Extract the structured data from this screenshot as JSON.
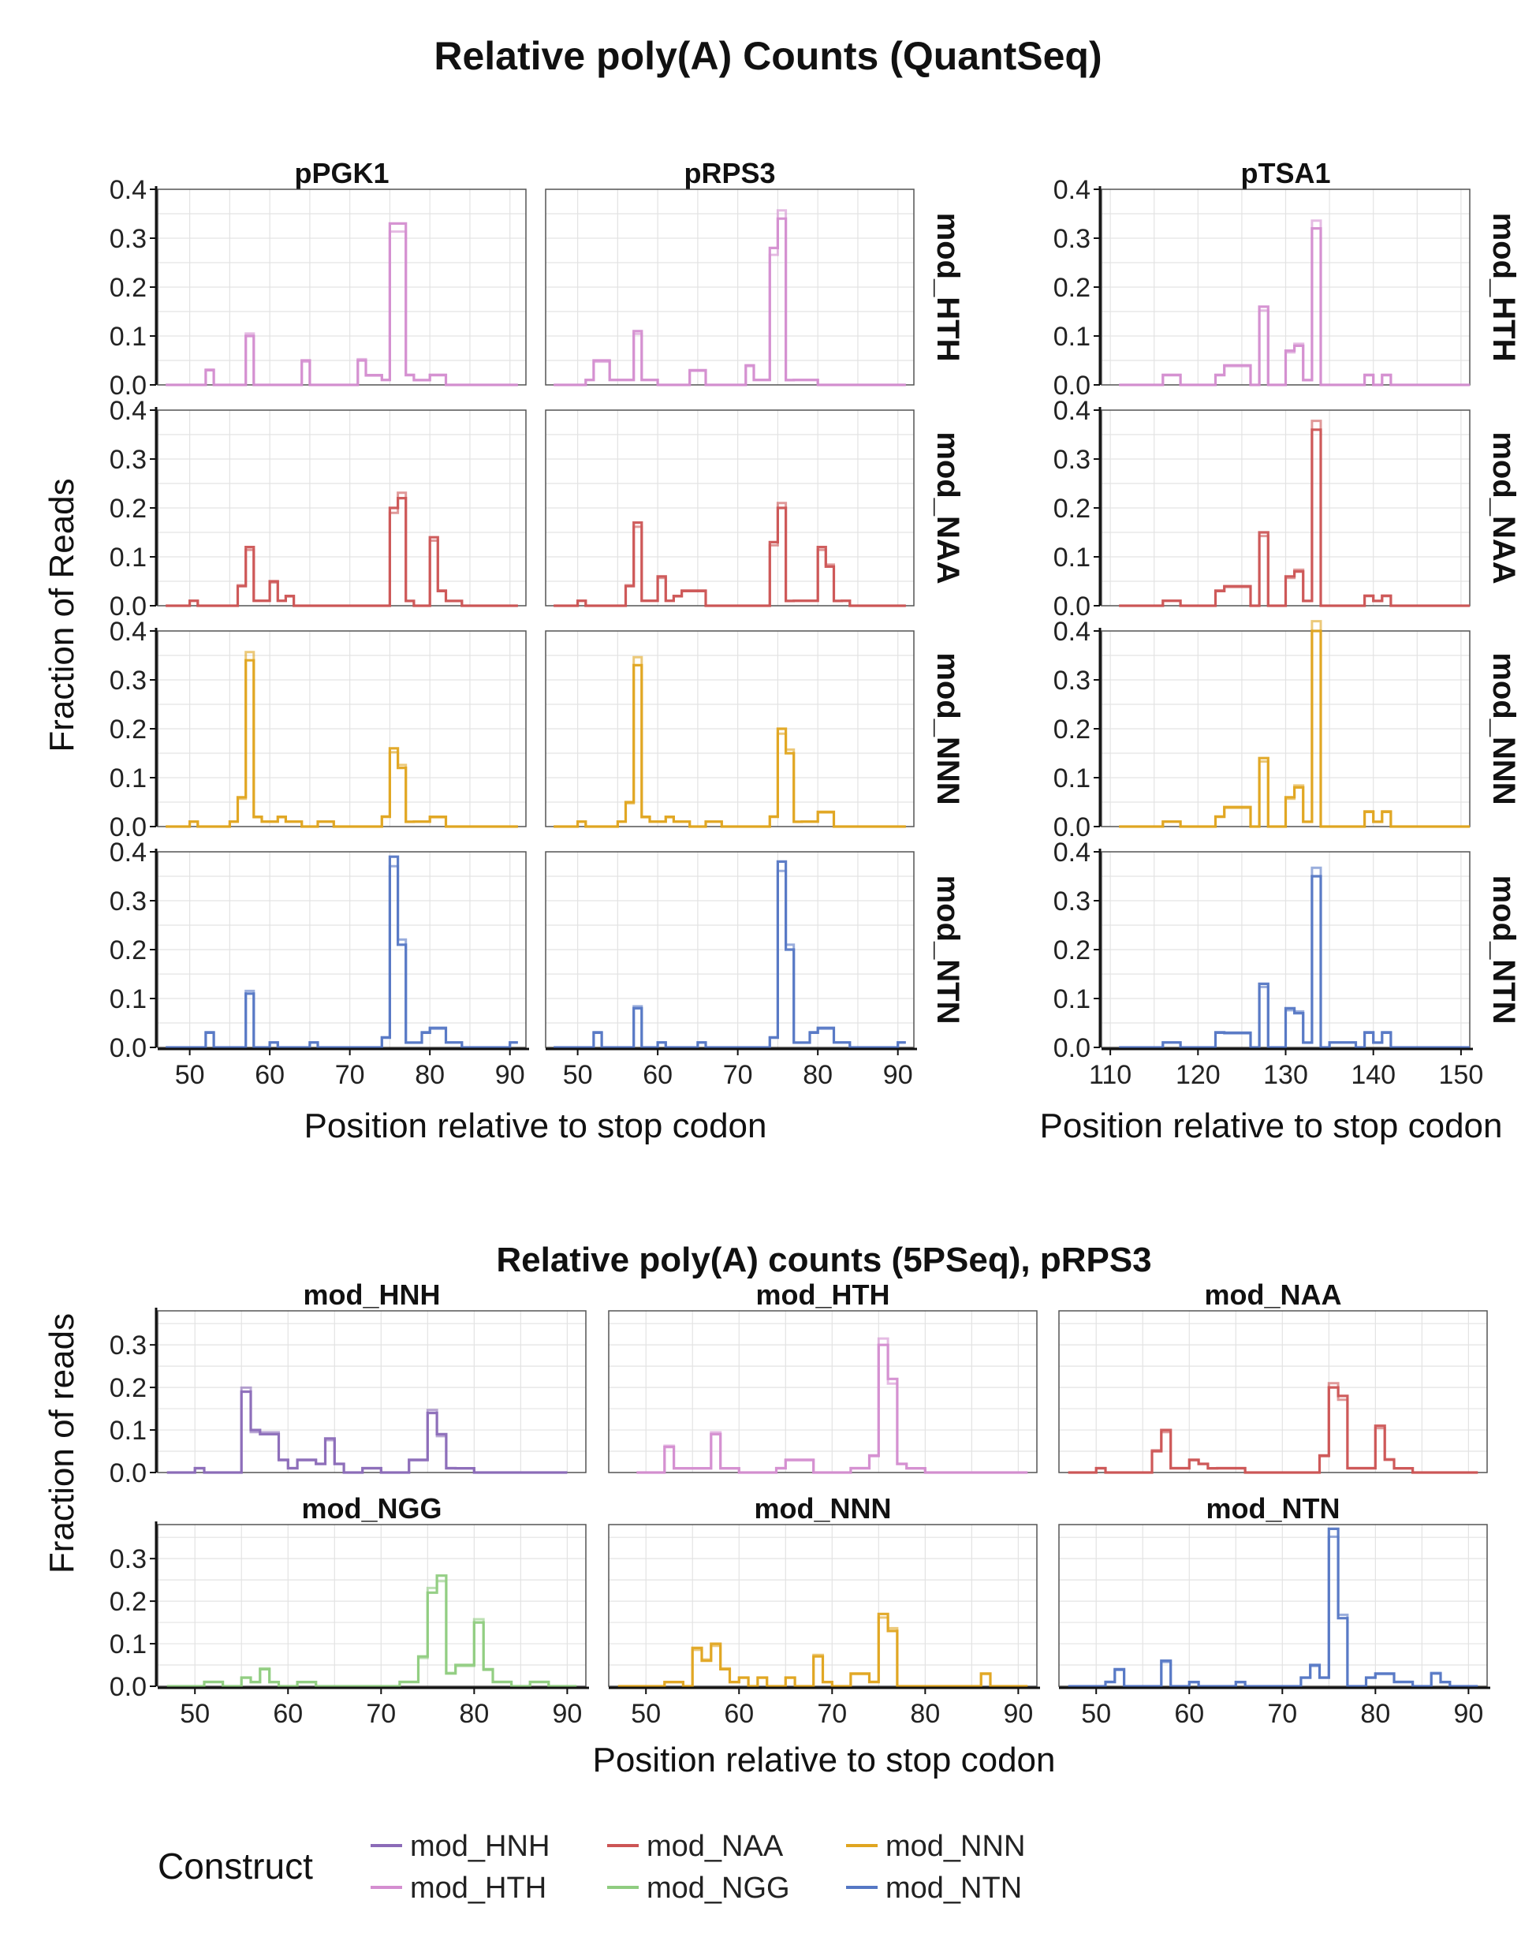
{
  "title": "Relative poly(A) Counts (QuantSeq)",
  "colors": {
    "mod_HNH": "#8b6bb8",
    "mod_HTH": "#d48ed0",
    "mod_NAA": "#cc5555",
    "mod_NGG": "#8fcc80",
    "mod_NNN": "#e0a520",
    "mod_NTN": "#5577c4"
  },
  "chart_data": [
    {
      "type": "line",
      "title": "Relative poly(A) Counts (QuantSeq)",
      "xlabel": "Position relative to stop codon",
      "ylabel": "Fraction of Reads",
      "ylim": [
        0,
        0.4
      ],
      "yticks": [
        "0.0",
        "0.1",
        "0.2",
        "0.3",
        "0.4"
      ],
      "columns": [
        "pPGK1",
        "pRPS3",
        "pTSA1"
      ],
      "rows": [
        "mod_HTH",
        "mod_NAA",
        "mod_NNN",
        "mod_NTN"
      ],
      "xlim": {
        "pPGK1": [
          46,
          92
        ],
        "pRPS3": [
          46,
          92
        ],
        "pTSA1": [
          109,
          151
        ]
      },
      "xticks": {
        "pPGK1": [
          50,
          60,
          70,
          80,
          90
        ],
        "pRPS3": [
          50,
          60,
          70,
          80,
          90
        ],
        "pTSA1": [
          110,
          120,
          130,
          140,
          150
        ]
      },
      "grid": true,
      "panels": [
        {
          "column": "pPGK1",
          "row": "mod_HTH",
          "x": [
            47,
            52,
            53,
            57,
            58,
            62,
            64,
            65,
            68,
            71,
            72,
            74,
            75,
            77,
            78,
            80,
            82,
            84,
            90
          ],
          "y": [
            0.0,
            0.03,
            0.0,
            0.1,
            0.0,
            0.0,
            0.05,
            0.0,
            0.0,
            0.05,
            0.02,
            0.01,
            0.33,
            0.02,
            0.01,
            0.02,
            0.0,
            0.0,
            0.0
          ]
        },
        {
          "column": "pRPS3",
          "row": "mod_HTH",
          "x": [
            47,
            51,
            52,
            54,
            57,
            58,
            60,
            63,
            64,
            66,
            68,
            70,
            71,
            72,
            74,
            75,
            76,
            77,
            80,
            90
          ],
          "y": [
            0.0,
            0.01,
            0.05,
            0.01,
            0.11,
            0.01,
            0.0,
            0.0,
            0.03,
            0.0,
            0.0,
            0.0,
            0.04,
            0.01,
            0.28,
            0.34,
            0.01,
            0.01,
            0.0,
            0.0
          ]
        },
        {
          "column": "pTSA1",
          "row": "mod_HTH",
          "x": [
            111,
            116,
            118,
            122,
            123,
            126,
            127,
            128,
            130,
            131,
            132,
            133,
            134,
            135,
            138,
            139,
            140,
            141,
            142,
            150
          ],
          "y": [
            0.0,
            0.02,
            0.0,
            0.02,
            0.04,
            0.0,
            0.16,
            0.0,
            0.07,
            0.08,
            0.01,
            0.32,
            0.0,
            0.0,
            0.0,
            0.02,
            0.0,
            0.02,
            0.0,
            0.0
          ]
        },
        {
          "column": "pPGK1",
          "row": "mod_NAA",
          "x": [
            47,
            50,
            51,
            56,
            57,
            58,
            60,
            61,
            62,
            63,
            64,
            65,
            68,
            72,
            75,
            76,
            77,
            78,
            80,
            81,
            82,
            84,
            90
          ],
          "y": [
            0.0,
            0.01,
            0.0,
            0.04,
            0.12,
            0.01,
            0.05,
            0.01,
            0.02,
            0.0,
            0.0,
            0.0,
            0.0,
            0.0,
            0.2,
            0.22,
            0.01,
            0.0,
            0.14,
            0.03,
            0.01,
            0.0,
            0.0
          ]
        },
        {
          "column": "pRPS3",
          "row": "mod_NAA",
          "x": [
            47,
            50,
            51,
            56,
            57,
            58,
            60,
            61,
            62,
            63,
            66,
            68,
            70,
            72,
            74,
            75,
            76,
            77,
            80,
            81,
            82,
            83,
            84,
            90
          ],
          "y": [
            0.0,
            0.01,
            0.0,
            0.04,
            0.17,
            0.01,
            0.06,
            0.01,
            0.02,
            0.03,
            0.0,
            0.0,
            0.0,
            0.0,
            0.13,
            0.2,
            0.01,
            0.01,
            0.12,
            0.08,
            0.01,
            0.01,
            0.0,
            0.0
          ]
        },
        {
          "column": "pTSA1",
          "row": "mod_NAA",
          "x": [
            111,
            116,
            118,
            122,
            123,
            126,
            127,
            128,
            130,
            131,
            132,
            133,
            134,
            135,
            138,
            139,
            140,
            141,
            142,
            150
          ],
          "y": [
            0.0,
            0.01,
            0.0,
            0.03,
            0.04,
            0.0,
            0.15,
            0.0,
            0.06,
            0.07,
            0.01,
            0.36,
            0.0,
            0.0,
            0.0,
            0.02,
            0.01,
            0.02,
            0.0,
            0.0
          ]
        },
        {
          "column": "pPGK1",
          "row": "mod_NNN",
          "x": [
            47,
            50,
            51,
            55,
            56,
            57,
            58,
            59,
            61,
            62,
            64,
            66,
            68,
            70,
            72,
            74,
            75,
            76,
            77,
            78,
            80,
            82,
            84,
            90
          ],
          "y": [
            0.0,
            0.01,
            0.0,
            0.01,
            0.06,
            0.34,
            0.02,
            0.01,
            0.02,
            0.01,
            0.0,
            0.01,
            0.0,
            0.0,
            0.0,
            0.02,
            0.16,
            0.12,
            0.01,
            0.01,
            0.02,
            0.0,
            0.0,
            0.0
          ]
        },
        {
          "column": "pRPS3",
          "row": "mod_NNN",
          "x": [
            47,
            50,
            51,
            55,
            56,
            57,
            58,
            59,
            61,
            62,
            64,
            66,
            68,
            70,
            72,
            74,
            75,
            76,
            77,
            78,
            80,
            82,
            84,
            90
          ],
          "y": [
            0.0,
            0.01,
            0.0,
            0.01,
            0.05,
            0.33,
            0.02,
            0.01,
            0.02,
            0.01,
            0.0,
            0.01,
            0.0,
            0.0,
            0.0,
            0.02,
            0.2,
            0.15,
            0.01,
            0.01,
            0.03,
            0.0,
            0.0,
            0.0
          ]
        },
        {
          "column": "pTSA1",
          "row": "mod_NNN",
          "x": [
            111,
            116,
            118,
            122,
            123,
            126,
            127,
            128,
            130,
            131,
            132,
            133,
            134,
            135,
            138,
            139,
            140,
            141,
            142,
            150
          ],
          "y": [
            0.0,
            0.01,
            0.0,
            0.02,
            0.04,
            0.0,
            0.14,
            0.0,
            0.06,
            0.08,
            0.01,
            0.4,
            0.0,
            0.0,
            0.0,
            0.03,
            0.01,
            0.03,
            0.0,
            0.0
          ]
        },
        {
          "column": "pPGK1",
          "row": "mod_NTN",
          "x": [
            47,
            52,
            53,
            57,
            58,
            60,
            61,
            65,
            66,
            70,
            72,
            74,
            75,
            76,
            77,
            79,
            80,
            82,
            84,
            90
          ],
          "y": [
            0.0,
            0.03,
            0.0,
            0.11,
            0.0,
            0.01,
            0.0,
            0.01,
            0.0,
            0.0,
            0.0,
            0.02,
            0.39,
            0.21,
            0.01,
            0.03,
            0.04,
            0.01,
            0.0,
            0.01
          ]
        },
        {
          "column": "pRPS3",
          "row": "mod_NTN",
          "x": [
            47,
            52,
            53,
            57,
            58,
            60,
            61,
            65,
            66,
            70,
            72,
            74,
            75,
            76,
            77,
            79,
            80,
            82,
            84,
            90
          ],
          "y": [
            0.0,
            0.03,
            0.0,
            0.08,
            0.0,
            0.01,
            0.0,
            0.01,
            0.0,
            0.0,
            0.0,
            0.02,
            0.38,
            0.2,
            0.01,
            0.03,
            0.04,
            0.01,
            0.0,
            0.01
          ]
        },
        {
          "column": "pTSA1",
          "row": "mod_NTN",
          "x": [
            111,
            116,
            118,
            122,
            123,
            126,
            127,
            128,
            130,
            131,
            132,
            133,
            134,
            135,
            138,
            139,
            140,
            141,
            142,
            150
          ],
          "y": [
            0.0,
            0.01,
            0.0,
            0.03,
            0.03,
            0.0,
            0.13,
            0.0,
            0.08,
            0.07,
            0.01,
            0.35,
            0.0,
            0.01,
            0.0,
            0.03,
            0.01,
            0.03,
            0.0,
            0.0
          ]
        }
      ]
    },
    {
      "type": "line",
      "title": "Relative poly(A) counts (5PSeq), pRPS3",
      "xlabel": "Position relative to stop codon",
      "ylabel": "Fraction of reads",
      "ylim": [
        0,
        0.38
      ],
      "yticks": [
        "0.0",
        "0.1",
        "0.2",
        "0.3"
      ],
      "xlim": [
        46,
        92
      ],
      "xticks": [
        50,
        60,
        70,
        80,
        90
      ],
      "grid": true,
      "panels": [
        {
          "facet": "mod_HNH",
          "x": [
            47,
            50,
            51,
            55,
            56,
            57,
            59,
            60,
            61,
            63,
            64,
            65,
            66,
            68,
            70,
            72,
            73,
            75,
            76,
            77,
            78,
            80,
            82,
            89
          ],
          "y": [
            0.0,
            0.01,
            0.0,
            0.19,
            0.1,
            0.09,
            0.03,
            0.01,
            0.03,
            0.02,
            0.08,
            0.02,
            0.0,
            0.01,
            0.0,
            0.0,
            0.03,
            0.14,
            0.09,
            0.01,
            0.01,
            0.0,
            0.0,
            0.0
          ]
        },
        {
          "facet": "mod_HTH",
          "x": [
            49,
            52,
            53,
            57,
            58,
            60,
            62,
            64,
            65,
            68,
            70,
            72,
            74,
            75,
            76,
            77,
            78,
            80,
            82,
            90
          ],
          "y": [
            0.0,
            0.06,
            0.01,
            0.09,
            0.01,
            0.0,
            0.0,
            0.01,
            0.03,
            0.0,
            0.0,
            0.01,
            0.04,
            0.3,
            0.22,
            0.02,
            0.01,
            0.0,
            0.0,
            0.0
          ]
        },
        {
          "facet": "mod_NAA",
          "x": [
            47,
            50,
            51,
            56,
            57,
            58,
            60,
            61,
            62,
            63,
            66,
            68,
            70,
            72,
            74,
            75,
            76,
            77,
            80,
            81,
            82,
            84,
            90
          ],
          "y": [
            0.0,
            0.01,
            0.0,
            0.05,
            0.1,
            0.01,
            0.03,
            0.02,
            0.01,
            0.01,
            0.0,
            0.0,
            0.0,
            0.0,
            0.04,
            0.2,
            0.18,
            0.01,
            0.11,
            0.03,
            0.01,
            0.0,
            0.0
          ]
        },
        {
          "facet": "mod_NGG",
          "x": [
            47,
            51,
            53,
            55,
            56,
            57,
            58,
            59,
            61,
            63,
            65,
            68,
            70,
            72,
            74,
            75,
            76,
            77,
            78,
            80,
            81,
            82,
            84,
            86,
            88,
            90
          ],
          "y": [
            0.0,
            0.01,
            0.0,
            0.02,
            0.01,
            0.04,
            0.01,
            0.0,
            0.01,
            0.0,
            0.0,
            0.0,
            0.0,
            0.01,
            0.07,
            0.22,
            0.26,
            0.03,
            0.05,
            0.15,
            0.04,
            0.01,
            0.0,
            0.01,
            0.0,
            0.0
          ]
        },
        {
          "facet": "mod_NNN",
          "x": [
            47,
            50,
            52,
            54,
            55,
            56,
            57,
            58,
            59,
            60,
            61,
            62,
            63,
            65,
            66,
            68,
            69,
            70,
            72,
            74,
            75,
            76,
            77,
            78,
            80,
            82,
            86,
            87,
            88,
            90
          ],
          "y": [
            0.0,
            0.0,
            0.01,
            0.0,
            0.09,
            0.06,
            0.1,
            0.04,
            0.01,
            0.02,
            0.0,
            0.02,
            0.0,
            0.02,
            0.0,
            0.07,
            0.01,
            0.0,
            0.03,
            0.01,
            0.17,
            0.13,
            0.0,
            0.0,
            0.0,
            0.0,
            0.03,
            0.0,
            0.0,
            0.0
          ]
        },
        {
          "facet": "mod_NTN",
          "x": [
            47,
            51,
            52,
            53,
            57,
            58,
            60,
            61,
            65,
            66,
            70,
            72,
            73,
            74,
            75,
            76,
            77,
            79,
            80,
            82,
            84,
            86,
            87,
            88,
            90
          ],
          "y": [
            0.0,
            0.01,
            0.04,
            0.0,
            0.06,
            0.0,
            0.01,
            0.0,
            0.01,
            0.0,
            0.0,
            0.02,
            0.05,
            0.02,
            0.37,
            0.16,
            0.0,
            0.02,
            0.03,
            0.01,
            0.0,
            0.03,
            0.01,
            0.0,
            0.0
          ]
        }
      ]
    }
  ],
  "legend": {
    "title": "Construct",
    "items": [
      "mod_HNH",
      "mod_HTH",
      "mod_NAA",
      "mod_NGG",
      "mod_NNN",
      "mod_NTN"
    ]
  }
}
